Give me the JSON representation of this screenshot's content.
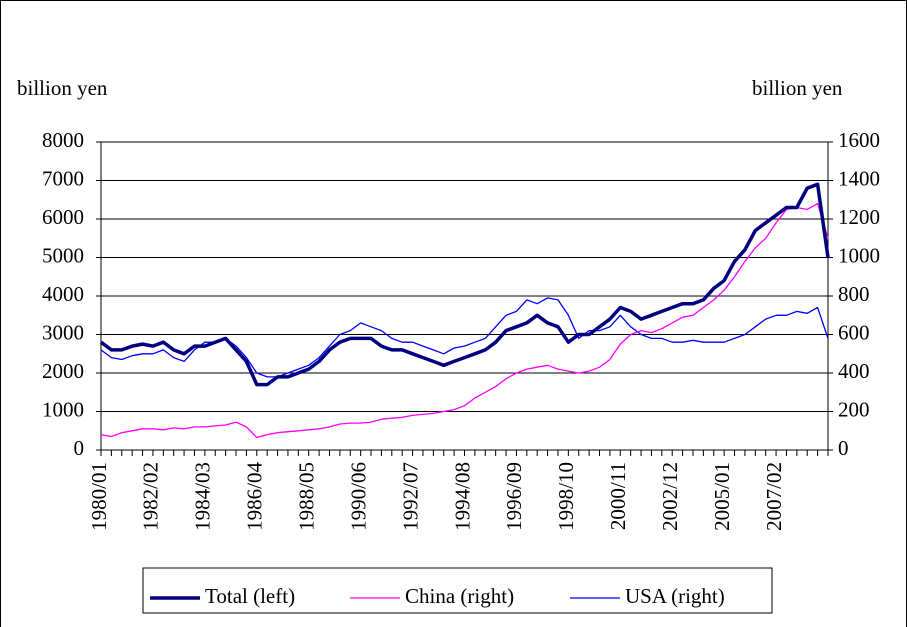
{
  "chart_data": {
    "type": "line",
    "y_label": "billion yen",
    "y2_label": "billion yen",
    "categories": [
      "1980/01",
      null,
      null,
      null,
      null,
      "1982/02",
      null,
      null,
      null,
      null,
      "1984/03",
      null,
      null,
      null,
      null,
      "1986/04",
      null,
      null,
      null,
      null,
      "1988/05",
      null,
      null,
      null,
      null,
      "1990/06",
      null,
      null,
      null,
      null,
      "1992/07",
      null,
      null,
      null,
      null,
      "1994/08",
      null,
      null,
      null,
      null,
      "1996/09",
      null,
      null,
      null,
      null,
      "1998/10",
      null,
      null,
      null,
      null,
      "2000/11",
      null,
      null,
      null,
      null,
      "2002/12",
      null,
      null,
      null,
      null,
      "2005/01",
      null,
      null,
      null,
      null,
      "2007/02",
      null,
      null,
      null,
      null,
      null
    ],
    "series": [
      {
        "name": "Total (left)",
        "color": "#000080",
        "axis": "y",
        "values": [
          2800,
          2600,
          2600,
          2700,
          2750,
          2700,
          2800,
          2600,
          2500,
          2700,
          2700,
          2800,
          2900,
          2600,
          2300,
          1700,
          1700,
          1900,
          1900,
          2000,
          2100,
          2300,
          2600,
          2800,
          2900,
          2900,
          2900,
          2700,
          2600,
          2600,
          2500,
          2400,
          2300,
          2200,
          2300,
          2400,
          2500,
          2600,
          2800,
          3100,
          3200,
          3300,
          3500,
          3300,
          3200,
          2800,
          3000,
          3000,
          3200,
          3400,
          3700,
          3600,
          3400,
          3500,
          3600,
          3700,
          3800,
          3800,
          3900,
          4200,
          4400,
          4900,
          5200,
          5700,
          5900,
          6100,
          6300,
          6300,
          6800,
          6900,
          5000
        ]
      },
      {
        "name": "China (right)",
        "color": "#ff00ff",
        "axis": "y2",
        "values": [
          80,
          70,
          90,
          100,
          110,
          110,
          105,
          115,
          110,
          120,
          120,
          125,
          130,
          145,
          120,
          65,
          80,
          90,
          95,
          100,
          105,
          110,
          120,
          135,
          140,
          140,
          145,
          160,
          165,
          170,
          180,
          185,
          190,
          200,
          210,
          230,
          270,
          300,
          330,
          370,
          400,
          420,
          430,
          440,
          420,
          410,
          400,
          410,
          430,
          470,
          550,
          600,
          620,
          610,
          630,
          660,
          690,
          700,
          740,
          780,
          830,
          900,
          980,
          1050,
          1100,
          1180,
          1250,
          1260,
          1250,
          1280,
          1100
        ]
      },
      {
        "name": "USA (right)",
        "color": "#0000ff",
        "axis": "y2",
        "values": [
          520,
          480,
          470,
          490,
          500,
          500,
          520,
          480,
          460,
          520,
          560,
          560,
          580,
          540,
          480,
          400,
          380,
          380,
          400,
          420,
          440,
          480,
          540,
          600,
          620,
          660,
          640,
          620,
          580,
          560,
          560,
          540,
          520,
          500,
          530,
          540,
          560,
          580,
          640,
          700,
          720,
          780,
          760,
          790,
          780,
          700,
          580,
          620,
          620,
          640,
          700,
          640,
          600,
          580,
          580,
          560,
          560,
          570,
          560,
          560,
          560,
          580,
          600,
          640,
          680,
          700,
          700,
          720,
          710,
          740,
          580
        ]
      }
    ],
    "ylim": [
      0,
      8000
    ],
    "yticks": [
      0,
      1000,
      2000,
      3000,
      4000,
      5000,
      6000,
      7000,
      8000
    ],
    "y2lim": [
      0,
      1600
    ],
    "y2ticks": [
      0,
      200,
      400,
      600,
      800,
      1000,
      1200,
      1400,
      1600
    ],
    "grid": true,
    "legend": "bottom"
  }
}
